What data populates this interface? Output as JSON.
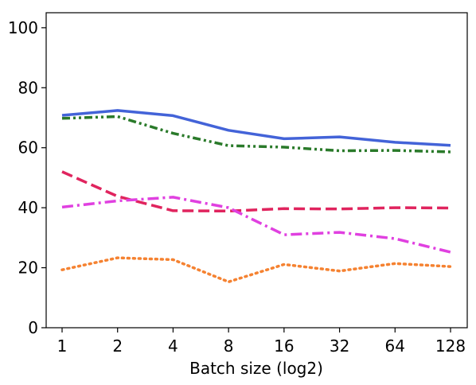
{
  "chart_data": {
    "type": "line",
    "title": "",
    "xlabel": "Batch size (log2)",
    "ylabel": "",
    "x": [
      "1",
      "2",
      "4",
      "8",
      "16",
      "32",
      "64",
      "128"
    ],
    "ylim": [
      0,
      105
    ],
    "yticks": [
      0,
      20,
      40,
      60,
      80,
      100
    ],
    "grid": false,
    "legend": "none",
    "series": [
      {
        "color": "#4363d8",
        "dash": "solid",
        "values": [
          70.8,
          72.4,
          70.7,
          65.8,
          63.0,
          63.6,
          61.8,
          60.8
        ]
      },
      {
        "color": "#2a7a2a",
        "dash": "dashdotdot",
        "values": [
          69.8,
          70.4,
          64.8,
          60.7,
          60.2,
          59.0,
          59.1,
          58.6
        ]
      },
      {
        "color": "#e0245e",
        "dash": "dashed",
        "values": [
          52.0,
          43.8,
          39.0,
          38.9,
          39.7,
          39.6,
          40.0,
          39.9
        ]
      },
      {
        "color": "#e040e0",
        "dash": "dashdot",
        "values": [
          40.2,
          42.3,
          43.5,
          40.0,
          31.0,
          31.8,
          29.7,
          25.2
        ]
      },
      {
        "color": "#f58231",
        "dash": "dotted",
        "values": [
          19.3,
          23.3,
          22.7,
          15.3,
          21.1,
          18.9,
          21.4,
          20.4
        ]
      }
    ]
  }
}
